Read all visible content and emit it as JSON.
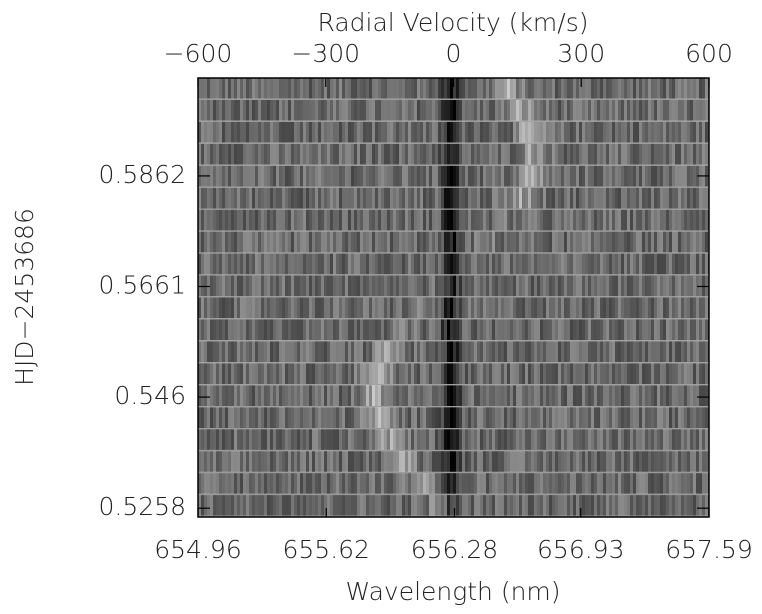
{
  "chart_data": {
    "type": "spectrogram",
    "x_label_top": "Radial Velocity (km/s)",
    "x_label": "Wavelength (nm)",
    "y_label": "HJD−2453686",
    "x2lim": [
      -600,
      600
    ],
    "x2ticks": [
      {
        "value": -600,
        "label": "−600"
      },
      {
        "value": -300,
        "label": "−300"
      },
      0,
      300,
      600
    ],
    "xlim": [
      654.96,
      657.59
    ],
    "xticks": [
      654.96,
      655.62,
      656.28,
      656.93,
      657.59
    ],
    "ylim": [
      0.5242,
      0.604
    ],
    "yticks": [
      0.5258,
      0.546,
      0.5661,
      0.5862
    ]
  }
}
